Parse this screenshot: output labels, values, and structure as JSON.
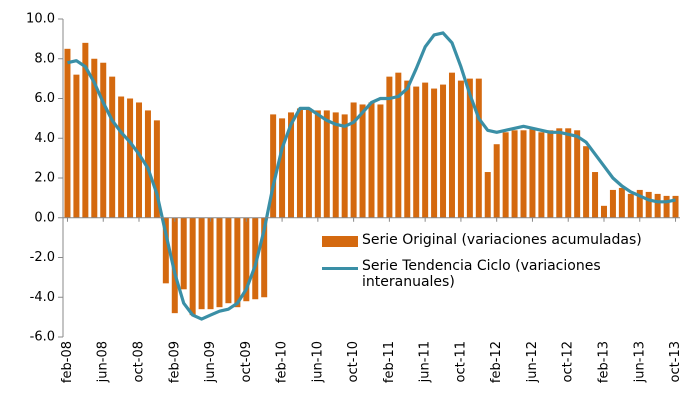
{
  "chart_data": {
    "type": "bar_line",
    "categories": [
      "feb-08",
      null,
      null,
      null,
      "jun-08",
      null,
      null,
      null,
      "oct-08",
      null,
      null,
      null,
      "feb-09",
      null,
      null,
      null,
      "jun-09",
      null,
      null,
      null,
      "oct-09",
      null,
      null,
      null,
      "feb-10",
      null,
      null,
      null,
      "jun-10",
      null,
      null,
      null,
      "oct-10",
      null,
      null,
      null,
      "feb-11",
      null,
      null,
      null,
      "jun-11",
      null,
      null,
      null,
      "oct-11",
      null,
      null,
      null,
      "feb-12",
      null,
      null,
      null,
      "jun-12",
      null,
      null,
      null,
      "oct-12",
      null,
      null,
      null,
      "feb-13",
      null,
      null,
      null,
      "jun-13",
      null,
      null,
      null,
      "oct-13"
    ],
    "series": [
      {
        "name": "Serie Original (variaciones acumuladas)",
        "color": "#d4690f",
        "kind": "bar",
        "values": [
          8.5,
          7.2,
          8.8,
          8.0,
          7.8,
          7.1,
          6.1,
          6.0,
          5.8,
          5.4,
          4.9,
          -3.3,
          -4.8,
          -3.6,
          -4.9,
          -4.6,
          -4.6,
          -4.5,
          -4.3,
          -4.5,
          -4.2,
          -4.1,
          -4.0,
          5.2,
          5.0,
          5.3,
          5.5,
          5.5,
          5.4,
          5.4,
          5.3,
          5.2,
          5.8,
          5.7,
          5.8,
          5.7,
          7.1,
          7.3,
          6.9,
          6.6,
          6.8,
          6.5,
          6.7,
          7.3,
          6.9,
          7.0,
          7.0,
          2.3,
          3.7,
          4.3,
          4.4,
          4.4,
          4.5,
          4.3,
          4.4,
          4.5,
          4.5,
          4.4,
          3.6,
          2.3,
          0.6,
          1.4,
          1.5,
          1.2,
          1.4,
          1.3,
          1.2,
          1.1,
          1.1
        ]
      },
      {
        "name": "Serie Tendencia Ciclo (variaciones interanuales)",
        "color": "#3a8fa6",
        "kind": "line",
        "values": [
          7.8,
          7.9,
          7.6,
          6.8,
          5.8,
          4.9,
          4.3,
          3.8,
          3.2,
          2.5,
          1.2,
          -0.8,
          -2.8,
          -4.3,
          -4.9,
          -5.1,
          -4.9,
          -4.7,
          -4.6,
          -4.3,
          -3.6,
          -2.4,
          -0.6,
          1.6,
          3.5,
          4.7,
          5.5,
          5.5,
          5.2,
          4.9,
          4.7,
          4.6,
          4.8,
          5.3,
          5.8,
          6.0,
          6.0,
          6.1,
          6.5,
          7.5,
          8.6,
          9.2,
          9.3,
          8.8,
          7.6,
          6.2,
          5.0,
          4.4,
          4.3,
          4.4,
          4.5,
          4.6,
          4.5,
          4.4,
          4.3,
          4.3,
          4.2,
          4.1,
          3.8,
          3.2,
          2.6,
          2.0,
          1.6,
          1.3,
          1.1,
          0.9,
          0.8,
          0.8,
          0.9
        ]
      }
    ],
    "ylim": [
      -6,
      10
    ],
    "yticks": [
      {
        "value": -6,
        "label": "-6.0"
      },
      {
        "value": -4,
        "label": "-4.0"
      },
      {
        "value": -2,
        "label": "-2.0"
      },
      {
        "value": 0,
        "label": "0.0"
      },
      {
        "value": 2,
        "label": "2.0"
      },
      {
        "value": 4,
        "label": "4.0"
      },
      {
        "value": 6,
        "label": "6.0"
      },
      {
        "value": 8,
        "label": "8.0"
      },
      {
        "value": 10,
        "label": "10.0"
      }
    ],
    "legend": "lower right"
  }
}
